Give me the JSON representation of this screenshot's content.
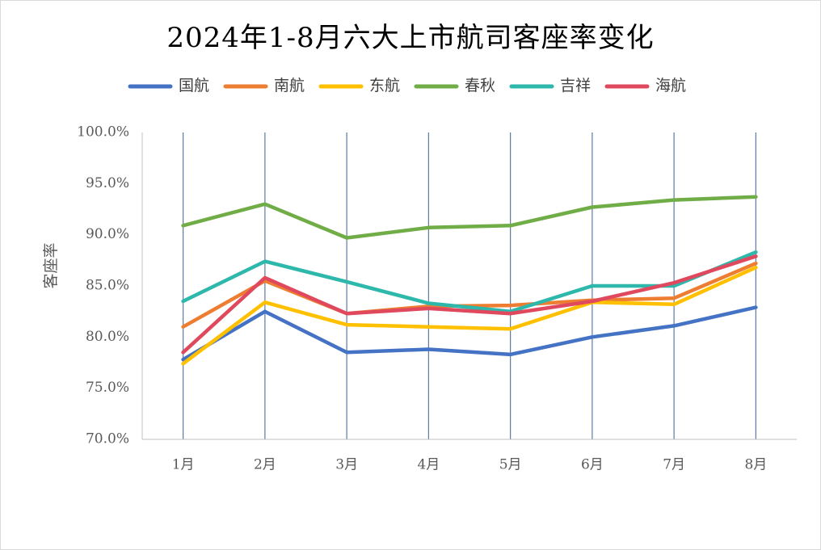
{
  "chart_data": {
    "type": "line",
    "title": "2024年1-8月六大上市航司客座率变化",
    "xlabel": "",
    "ylabel": "客座率",
    "categories": [
      "1月",
      "2月",
      "3月",
      "4月",
      "5月",
      "6月",
      "7月",
      "8月"
    ],
    "ylim": [
      70,
      100
    ],
    "yticks": [
      70,
      75,
      80,
      85,
      90,
      95,
      100
    ],
    "ytick_labels": [
      "70.0%",
      "75.0%",
      "80.0%",
      "85.0%",
      "90.0%",
      "95.0%",
      "100.0%"
    ],
    "grid": "vertical",
    "legend_position": "top",
    "series": [
      {
        "name": "国航",
        "color": "#4472C4",
        "values": [
          77.8,
          82.5,
          78.5,
          78.8,
          78.3,
          80.0,
          81.1,
          82.9
        ]
      },
      {
        "name": "南航",
        "color": "#ED7D31",
        "values": [
          81.0,
          85.5,
          82.3,
          83.0,
          83.1,
          83.6,
          83.8,
          87.2
        ]
      },
      {
        "name": "东航",
        "color": "#FFC000",
        "values": [
          77.4,
          83.4,
          81.2,
          81.0,
          80.8,
          83.4,
          83.2,
          86.8
        ]
      },
      {
        "name": "春秋",
        "color": "#70AD47",
        "values": [
          90.9,
          93.0,
          89.7,
          90.7,
          90.9,
          92.7,
          93.4,
          93.7
        ]
      },
      {
        "name": "吉祥",
        "color": "#2EB8AC",
        "values": [
          83.5,
          87.4,
          85.4,
          83.3,
          82.5,
          85.0,
          85.0,
          88.3
        ]
      },
      {
        "name": "海航",
        "color": "#E0485E",
        "values": [
          78.5,
          85.8,
          82.3,
          82.8,
          82.3,
          83.5,
          85.3,
          87.9
        ]
      }
    ]
  }
}
